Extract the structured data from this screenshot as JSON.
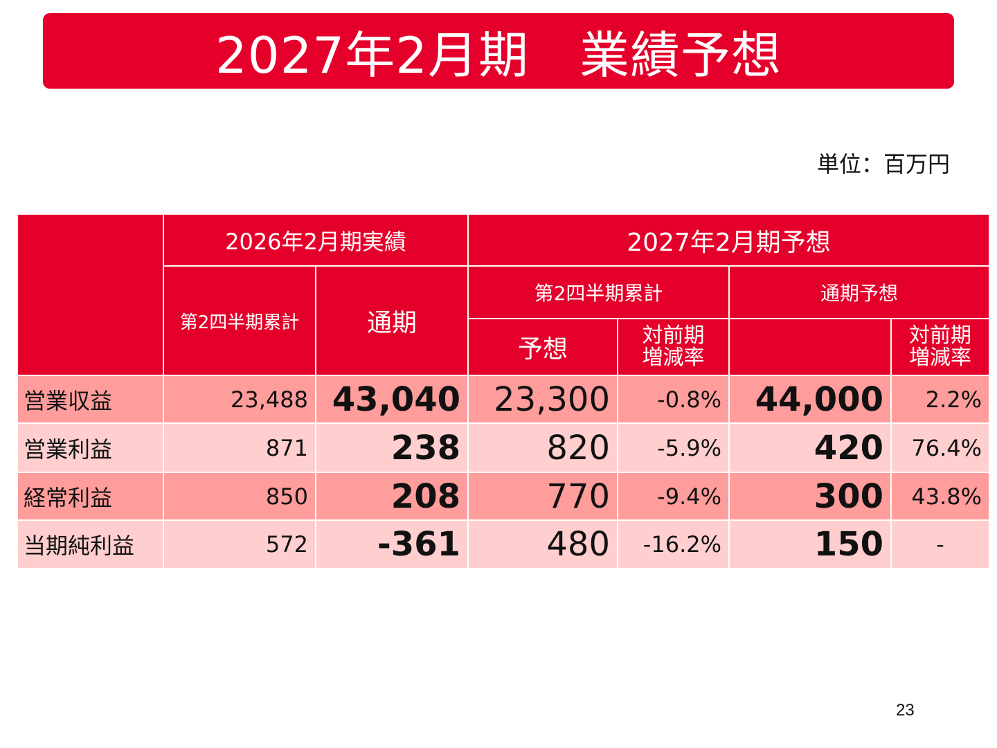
{
  "title": "2027年2月期　業績予想",
  "unit": "単位：百万円",
  "page_number": "23",
  "colors": {
    "brand_red": "#e4002b",
    "row_dark": "#ff9c9c",
    "row_light": "#ffcfcf"
  },
  "table": {
    "headers": {
      "fy2026": "2026年2月期実績",
      "fy2027": "2027年2月期予想",
      "q2_cumulative_actual": "第2四半期累計",
      "full_year_actual": "通期",
      "q2_cumulative_forecast": "第2四半期累計",
      "full_year_forecast": "通期予想",
      "forecast": "予想",
      "yoy_line1": "対前期",
      "yoy_line2": "増減率",
      "yoy_full_line1": "対前期",
      "yoy_full_line2": "増減率"
    },
    "rows": [
      {
        "label": "営業収益",
        "q2_actual": "23,488",
        "fy_actual": "43,040",
        "q2_forecast": "23,300",
        "q2_yoy": "-0.8%",
        "fy_forecast": "44,000",
        "fy_yoy": "2.2%"
      },
      {
        "label": "営業利益",
        "q2_actual": "871",
        "fy_actual": "238",
        "q2_forecast": "820",
        "q2_yoy": "-5.9%",
        "fy_forecast": "420",
        "fy_yoy": "76.4%"
      },
      {
        "label": "経常利益",
        "q2_actual": "850",
        "fy_actual": "208",
        "q2_forecast": "770",
        "q2_yoy": "-9.4%",
        "fy_forecast": "300",
        "fy_yoy": "43.8%"
      },
      {
        "label": "当期純利益",
        "q2_actual": "572",
        "fy_actual": "-361",
        "q2_forecast": "480",
        "q2_yoy": "-16.2%",
        "fy_forecast": "150",
        "fy_yoy": "-"
      }
    ]
  }
}
